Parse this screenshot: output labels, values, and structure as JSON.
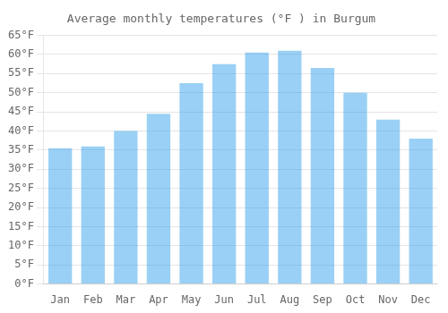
{
  "chart_data": {
    "type": "bar",
    "title": "Average monthly temperatures (°F ) in Burgum",
    "categories": [
      "Jan",
      "Feb",
      "Mar",
      "Apr",
      "May",
      "Jun",
      "Jul",
      "Aug",
      "Sep",
      "Oct",
      "Nov",
      "Dec"
    ],
    "values": [
      35.5,
      36.0,
      40.0,
      44.5,
      52.5,
      57.5,
      60.5,
      61.0,
      56.5,
      50.0,
      43.0,
      38.0
    ],
    "ylim": [
      0,
      65
    ],
    "yticks": [
      {
        "value": 0,
        "label": "0°F"
      },
      {
        "value": 5,
        "label": "5°F"
      },
      {
        "value": 10,
        "label": "10°F"
      },
      {
        "value": 15,
        "label": "15°F"
      },
      {
        "value": 20,
        "label": "20°F"
      },
      {
        "value": 25,
        "label": "25°F"
      },
      {
        "value": 30,
        "label": "30°F"
      },
      {
        "value": 35,
        "label": "35°F"
      },
      {
        "value": 40,
        "label": "40°F"
      },
      {
        "value": 45,
        "label": "45°F"
      },
      {
        "value": 50,
        "label": "50°F"
      },
      {
        "value": 55,
        "label": "55°F"
      },
      {
        "value": 60,
        "label": "60°F"
      },
      {
        "value": 65,
        "label": "65°F"
      }
    ],
    "grid": true
  }
}
